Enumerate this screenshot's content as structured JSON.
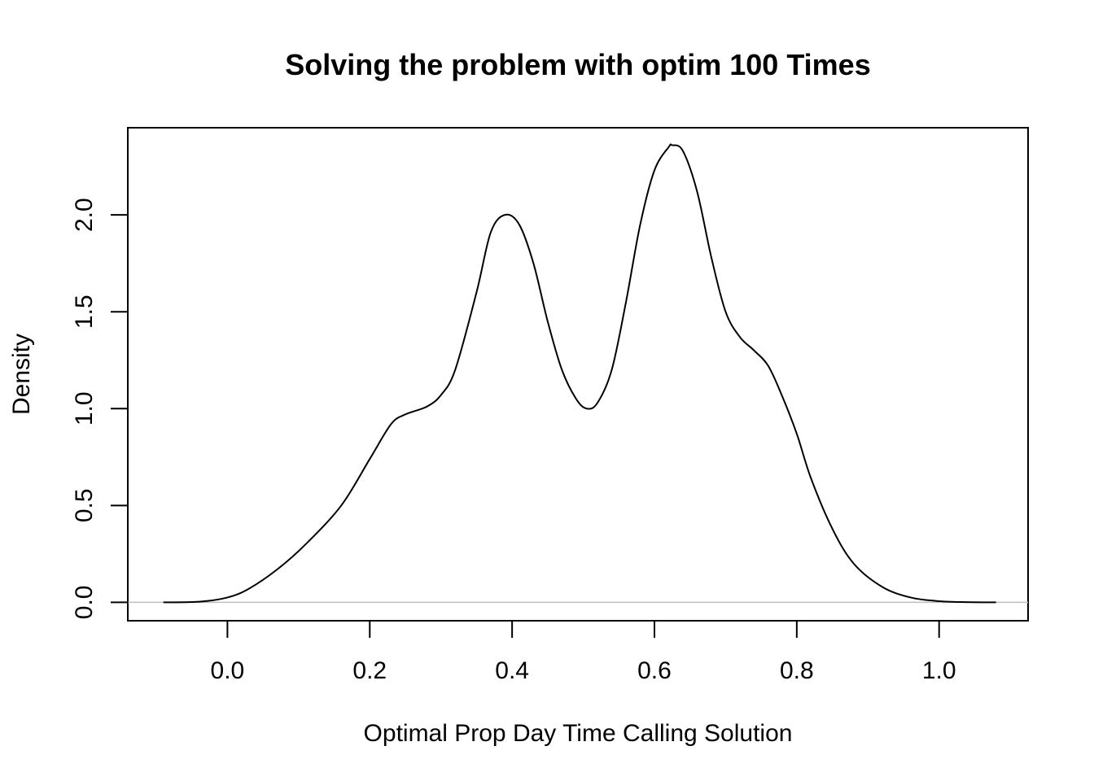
{
  "chart_data": {
    "type": "line",
    "title": "Solving the problem with optim 100 Times",
    "xlabel": "Optimal Prop Day Time Calling Solution",
    "ylabel": "Density",
    "xlim": [
      -0.14,
      1.125
    ],
    "ylim": [
      -0.095,
      2.45
    ],
    "x_ticks": [
      "0.0",
      "0.2",
      "0.4",
      "0.6",
      "0.8",
      "1.0"
    ],
    "y_ticks": [
      "0.0",
      "0.5",
      "1.0",
      "1.5",
      "2.0"
    ],
    "x_tick_values": [
      0.0,
      0.2,
      0.4,
      0.6,
      0.8,
      1.0
    ],
    "y_tick_values": [
      0.0,
      0.5,
      1.0,
      1.5,
      2.0
    ],
    "baseline": 0,
    "frame": true,
    "grid": false,
    "series": [
      {
        "x": [
          -0.09,
          -0.04,
          0.0,
          0.03,
          0.07,
          0.11,
          0.16,
          0.2,
          0.23,
          0.25,
          0.28,
          0.3,
          0.32,
          0.35,
          0.37,
          0.39,
          0.41,
          0.43,
          0.45,
          0.47,
          0.49,
          0.505,
          0.52,
          0.54,
          0.56,
          0.58,
          0.6,
          0.62,
          0.625,
          0.64,
          0.66,
          0.68,
          0.7,
          0.72,
          0.74,
          0.76,
          0.78,
          0.8,
          0.82,
          0.85,
          0.88,
          0.92,
          0.96,
          1.0,
          1.04,
          1.08
        ],
        "y": [
          0.0,
          0.003,
          0.025,
          0.07,
          0.17,
          0.3,
          0.5,
          0.74,
          0.92,
          0.97,
          1.01,
          1.07,
          1.2,
          1.6,
          1.91,
          2.0,
          1.95,
          1.75,
          1.45,
          1.2,
          1.05,
          1.0,
          1.03,
          1.2,
          1.55,
          1.95,
          2.23,
          2.35,
          2.36,
          2.33,
          2.12,
          1.78,
          1.5,
          1.37,
          1.3,
          1.22,
          1.06,
          0.87,
          0.64,
          0.38,
          0.2,
          0.08,
          0.025,
          0.006,
          0.001,
          0.0
        ]
      }
    ]
  }
}
